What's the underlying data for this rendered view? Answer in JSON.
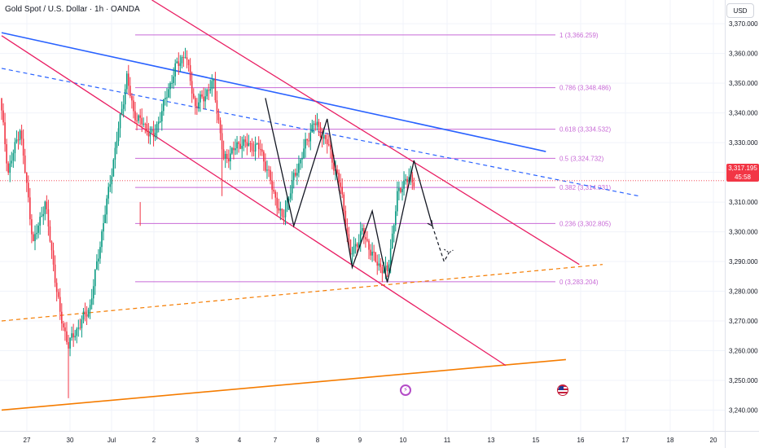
{
  "header": {
    "symbol_title": "Gold Spot / U.S. Dollar · 1h · OANDA",
    "currency": "USD"
  },
  "last_price": {
    "value": "3,317.195",
    "countdown": "45:58",
    "color": "#f23645"
  },
  "price_axis": {
    "ticks": [
      3370,
      3360,
      3350,
      3340,
      3330,
      3320,
      3310,
      3300,
      3290,
      3280,
      3270,
      3260,
      3250,
      3240
    ],
    "tick_labels": [
      "3,370.000",
      "3,360.000",
      "3,350.000",
      "3,340.000",
      "3,330.000",
      "3,320.000",
      "3,310.000",
      "3,300.000",
      "3,290.000",
      "3,280.000",
      "3,270.000",
      "3,260.000",
      "3,250.000",
      "3,240.000"
    ]
  },
  "time_axis": {
    "labels": [
      "27",
      "30",
      "Jul",
      "2",
      "3",
      "4",
      "7",
      "8",
      "9",
      "10",
      "11",
      "13",
      "15",
      "16",
      "17",
      "18",
      "20"
    ]
  },
  "fibonacci": {
    "color": "#c86ad6",
    "levels": [
      {
        "ratio": 1,
        "price": 3366.259,
        "label": "1 (3,366.259)"
      },
      {
        "ratio": 0.786,
        "price": 3348.486,
        "label": "0.786 (3,348.486)"
      },
      {
        "ratio": 0.618,
        "price": 3334.532,
        "label": "0.618 (3,334.532)"
      },
      {
        "ratio": 0.5,
        "price": 3324.732,
        "label": "0.5 (3,324.732)"
      },
      {
        "ratio": 0.382,
        "price": 3314.931,
        "label": "0.382 (3,314.931)"
      },
      {
        "ratio": 0.236,
        "price": 3302.805,
        "label": "0.236 (3,302.805)"
      },
      {
        "ratio": 0,
        "price": 3283.204,
        "label": "0 (3,283.204)"
      }
    ]
  },
  "chart_data": {
    "type": "candlestick",
    "title": "Gold Spot / U.S. Dollar · 1h · OANDA",
    "ylim": [
      3233,
      3378
    ],
    "colors": {
      "up": "#089981",
      "down": "#f23645",
      "blue_trend": "#2962ff",
      "orange_trend": "#f57c00",
      "channel": "#e91e63",
      "pattern": "#131722"
    },
    "swing_path": [
      {
        "i": 0,
        "o": 3346,
        "c": 3345
      },
      {
        "i": 5,
        "o": 3345,
        "c": 3320
      },
      {
        "i": 12,
        "o": 3320,
        "c": 3335
      },
      {
        "i": 20,
        "o": 3335,
        "c": 3296
      },
      {
        "i": 27,
        "o": 3296,
        "c": 3310
      },
      {
        "i": 36,
        "o": 3310,
        "c": 3272
      },
      {
        "i": 41,
        "o": 3272,
        "c": 3262
      },
      {
        "i": 47,
        "o": 3262,
        "c": 3268
      },
      {
        "i": 54,
        "o": 3268,
        "c": 3275
      },
      {
        "i": 64,
        "o": 3275,
        "c": 3310
      },
      {
        "i": 76,
        "o": 3310,
        "c": 3352
      },
      {
        "i": 80,
        "o": 3352,
        "c": 3340
      },
      {
        "i": 92,
        "o": 3340,
        "c": 3332
      },
      {
        "i": 105,
        "o": 3332,
        "c": 3355
      },
      {
        "i": 111,
        "o": 3355,
        "c": 3360
      },
      {
        "i": 117,
        "o": 3360,
        "c": 3342
      },
      {
        "i": 128,
        "o": 3342,
        "c": 3350
      },
      {
        "i": 134,
        "o": 3350,
        "c": 3324
      },
      {
        "i": 144,
        "o": 3324,
        "c": 3330
      },
      {
        "i": 156,
        "o": 3330,
        "c": 3328
      },
      {
        "i": 169,
        "o": 3328,
        "c": 3304
      },
      {
        "i": 176,
        "o": 3304,
        "c": 3318
      },
      {
        "i": 188,
        "o": 3318,
        "c": 3337
      },
      {
        "i": 196,
        "o": 3337,
        "c": 3330
      },
      {
        "i": 204,
        "o": 3330,
        "c": 3315
      },
      {
        "i": 210,
        "o": 3315,
        "c": 3292
      },
      {
        "i": 217,
        "o": 3292,
        "c": 3300
      },
      {
        "i": 225,
        "o": 3300,
        "c": 3290
      },
      {
        "i": 232,
        "o": 3290,
        "c": 3286
      },
      {
        "i": 238,
        "o": 3286,
        "c": 3312
      },
      {
        "i": 243,
        "o": 3312,
        "c": 3318
      },
      {
        "i": 247,
        "o": 3318,
        "c": 3317
      }
    ],
    "candle_count": 248,
    "trendlines": [
      {
        "name": "blue-trendline-solid",
        "points": [
          [
            0,
            3367
          ],
          [
            326,
            3327
          ]
        ]
      },
      {
        "name": "blue-trendline-dashed",
        "points": [
          [
            0,
            3355
          ],
          [
            382,
            3312
          ]
        ]
      },
      {
        "name": "orange-support-line",
        "points": [
          [
            0,
            3240
          ],
          [
            338,
            3257
          ]
        ]
      },
      {
        "name": "orange-support-dashed",
        "points": [
          [
            0,
            3270
          ],
          [
            360,
            3289
          ]
        ]
      },
      {
        "name": "channel-upper-line",
        "points": [
          [
            90,
            3378
          ],
          [
            346,
            3289
          ]
        ]
      },
      {
        "name": "channel-lower-line",
        "points": [
          [
            0,
            3366
          ],
          [
            302,
            3255
          ]
        ]
      }
    ],
    "pattern_path": [
      [
        158,
        3345
      ],
      [
        175,
        3302
      ],
      [
        195,
        3338
      ],
      [
        210,
        3288
      ],
      [
        222,
        3307
      ],
      [
        231,
        3283
      ],
      [
        247,
        3324
      ],
      [
        258,
        3302
      ]
    ],
    "projection_path": [
      [
        258,
        3302
      ],
      [
        265,
        3290
      ],
      [
        268,
        3293
      ]
    ],
    "last_price": 3317.195
  }
}
